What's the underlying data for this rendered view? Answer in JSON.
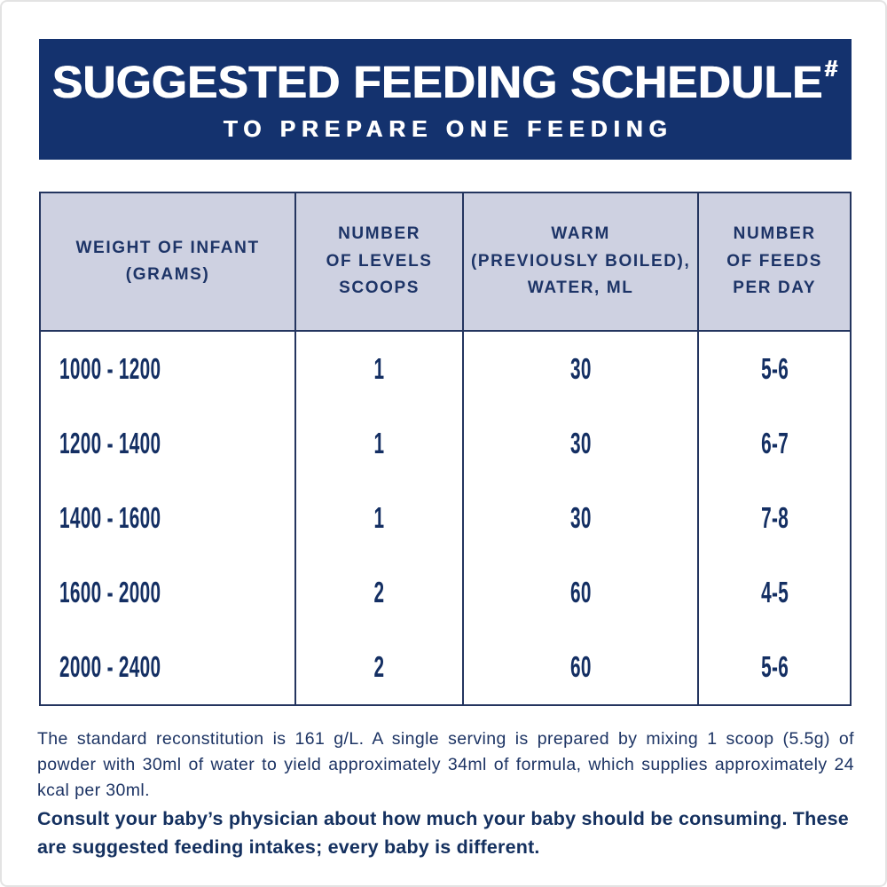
{
  "banner": {
    "title": "SUGGESTED FEEDING SCHEDULE",
    "title_superscript": "#",
    "subtitle": "TO PREPARE ONE FEEDING"
  },
  "table": {
    "columns": [
      "WEIGHT OF INFANT\n(GRAMS)",
      "NUMBER\nOF LEVELS\nSCOOPS",
      "WARM\n(PREVIOUSLY BOILED),\nWATER, ML",
      "NUMBER\nOF FEEDS\nPER DAY"
    ],
    "rows": [
      [
        "1000 - 1200",
        "1",
        "30",
        "5-6"
      ],
      [
        "1200 - 1400",
        "1",
        "30",
        "6-7"
      ],
      [
        "1400 - 1600",
        "1",
        "30",
        "7-8"
      ],
      [
        "1600 - 2000",
        "2",
        "60",
        "4-5"
      ],
      [
        "2000 - 2400",
        "2",
        "60",
        "5-6"
      ]
    ]
  },
  "notes": {
    "standard": "The standard reconstitution is 161 g/L. A single serving is prepared by mixing 1 scoop (5.5g) of powder with 30ml of water to yield approximately 34ml of formula, which supplies approximately 24 kcal per 30ml.",
    "consult": "Consult your baby’s physician about how much your baby should be consuming. These are suggested feeding intakes; every baby is different."
  },
  "colors": {
    "banner_bg": "#14326e",
    "header_row_bg": "#ced1e1",
    "table_border": "#24355f",
    "text_navy": "#142f63",
    "banner_text": "#ffffff"
  }
}
